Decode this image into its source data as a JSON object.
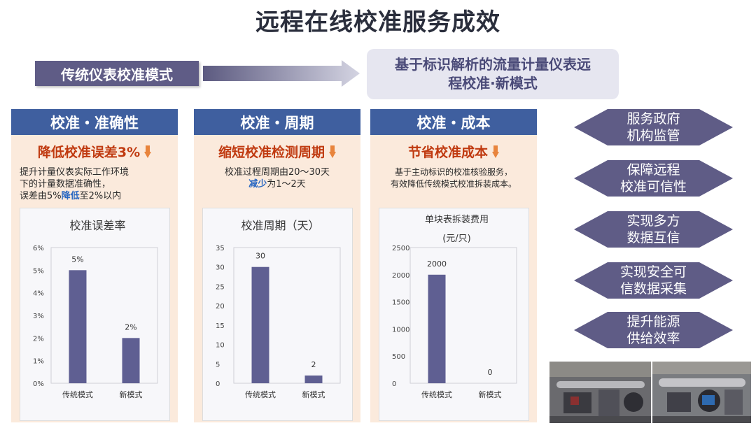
{
  "title": "远程在线校准服务成效",
  "old_mode": "传统仪表校准模式",
  "new_mode_line1": "基于标识解析的流量计量仪表远",
  "new_mode_line2": "程校准·新模式",
  "panels": [
    {
      "header": "校准・准确性",
      "subtitle": "降低校准误差3%",
      "desc_line1": "提升计量仪表实际工作环境",
      "desc_line2": "下的计量数据准确性，",
      "desc_line3_pre": "误差由5%",
      "desc_line3_hi": "降低",
      "desc_line3_post": "至2%以内"
    },
    {
      "header": "校准・周期",
      "subtitle": "缩短校准检测周期",
      "desc_line1": "校准过程周期由20～30天",
      "desc_line2_hi": "减少",
      "desc_line2_post": "为1～2天"
    },
    {
      "header": "校准・成本",
      "subtitle": "节省校准成本",
      "desc_line1": "基于主动标识的校准核验服务，",
      "desc_line2": "有效降低传统模式校准拆装成本。"
    }
  ],
  "benefits": [
    "服务政府\n机构监管",
    "保障远程\n校准可信性",
    "实现多方\n数据互信",
    "实现安全可\n信数据采集",
    "提升能源\n供给效率"
  ],
  "colors": {
    "accent_dark": "#5f5c86",
    "bar": "#5f5f92",
    "panel_head": "#3f5f9f",
    "panel_bg": "#fbeadc",
    "highlight_red": "#c03a10",
    "arrow_orange": "#e8843c"
  },
  "chart_data": [
    {
      "type": "bar",
      "title": "校准误差率",
      "categories": [
        "传统模式",
        "新模式"
      ],
      "values": [
        5,
        2
      ],
      "value_labels": [
        "5%",
        "2%"
      ],
      "ylim": [
        0,
        6
      ],
      "yticks": [
        0,
        1,
        2,
        3,
        4,
        5,
        6
      ],
      "ytick_labels": [
        "0%",
        "1%",
        "2%",
        "3%",
        "4%",
        "5%",
        "6%"
      ],
      "grid": false
    },
    {
      "type": "bar",
      "title": "校准周期（天）",
      "categories": [
        "传统模式",
        "新模式"
      ],
      "values": [
        30,
        2
      ],
      "value_labels": [
        "30",
        "2"
      ],
      "ylim": [
        0,
        35
      ],
      "yticks": [
        0,
        5,
        10,
        15,
        20,
        25,
        30,
        35
      ],
      "ytick_labels": [
        "0",
        "5",
        "10",
        "15",
        "20",
        "25",
        "30",
        "35"
      ],
      "grid": false
    },
    {
      "type": "bar",
      "title": "单块表拆装费用\n(元/只)",
      "categories": [
        "传统模式",
        "新模式"
      ],
      "values": [
        2000,
        0
      ],
      "value_labels": [
        "2000",
        "0"
      ],
      "ylim": [
        0,
        2500
      ],
      "yticks": [
        0,
        500,
        1000,
        1500,
        2000,
        2500
      ],
      "ytick_labels": [
        "0",
        "500",
        "1000",
        "1500",
        "2000",
        "2500"
      ],
      "grid": false
    }
  ]
}
